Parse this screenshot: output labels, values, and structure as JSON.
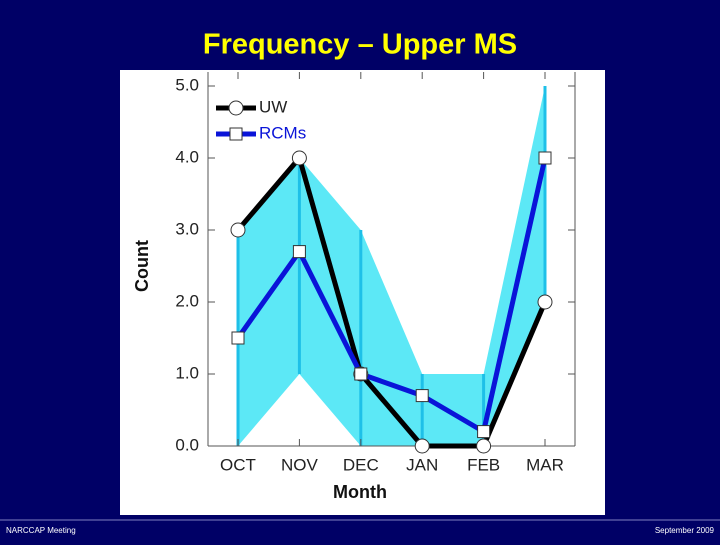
{
  "title": "Frequency – Upper MS",
  "footer_left": "NARCCAP Meeting",
  "footer_right": "September 2009",
  "chart_data": {
    "type": "line",
    "categories": [
      "OCT",
      "NOV",
      "DEC",
      "JAN",
      "FEB",
      "MAR"
    ],
    "series": [
      {
        "name": "UW",
        "color": "#000000",
        "marker": "circle",
        "values": [
          3,
          4,
          1,
          0,
          0,
          2
        ]
      },
      {
        "name": "RCMs",
        "color": "#0a14d8",
        "marker": "square",
        "values": [
          1.5,
          2.7,
          1.0,
          0.7,
          0.2,
          4.0
        ]
      }
    ],
    "range": {
      "color": "#5ce8f6",
      "bar_color": "#1ec0e8",
      "low": [
        0,
        1,
        0,
        0,
        0,
        2
      ],
      "high": [
        3,
        4,
        3,
        1,
        1,
        5
      ]
    },
    "xlabel": "Month",
    "ylabel": "Count",
    "ylim": [
      0,
      5
    ],
    "yticks": [
      {
        "value": 0,
        "label": "0.0"
      },
      {
        "value": 1,
        "label": "1.0"
      },
      {
        "value": 2,
        "label": "2.0"
      },
      {
        "value": 3,
        "label": "3.0"
      },
      {
        "value": 4,
        "label": "4.0"
      },
      {
        "value": 5,
        "label": "5.0"
      }
    ]
  }
}
